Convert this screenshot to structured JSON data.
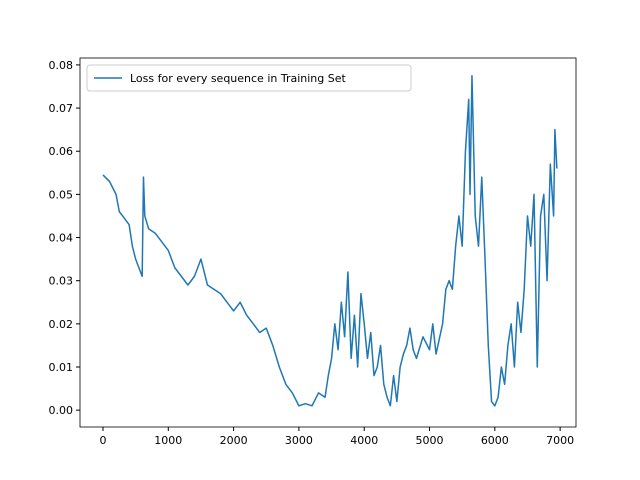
{
  "chart_data": {
    "type": "line",
    "x": [
      0,
      100,
      200,
      250,
      300,
      400,
      450,
      500,
      550,
      600,
      620,
      640,
      700,
      800,
      900,
      1000,
      1100,
      1200,
      1300,
      1400,
      1500,
      1550,
      1600,
      1700,
      1800,
      1900,
      2000,
      2100,
      2200,
      2300,
      2400,
      2500,
      2600,
      2700,
      2800,
      2900,
      3000,
      3100,
      3200,
      3300,
      3400,
      3450,
      3500,
      3550,
      3600,
      3650,
      3700,
      3750,
      3800,
      3850,
      3900,
      3950,
      4000,
      4050,
      4100,
      4150,
      4200,
      4250,
      4300,
      4350,
      4400,
      4450,
      4500,
      4550,
      4600,
      4650,
      4700,
      4750,
      4800,
      4900,
      5000,
      5050,
      5100,
      5200,
      5250,
      5300,
      5350,
      5400,
      5450,
      5500,
      5550,
      5600,
      5620,
      5650,
      5700,
      5750,
      5800,
      5850,
      5900,
      5950,
      6000,
      6050,
      6100,
      6150,
      6200,
      6250,
      6300,
      6350,
      6400,
      6450,
      6500,
      6550,
      6600,
      6650,
      6700,
      6750,
      6800,
      6850,
      6900,
      6920,
      6950
    ],
    "series": [
      {
        "name": "Loss for every sequence in Training Set",
        "color": "#1f77b4",
        "values": [
          0.0545,
          0.053,
          0.05,
          0.046,
          0.045,
          0.043,
          0.038,
          0.035,
          0.033,
          0.031,
          0.054,
          0.045,
          0.042,
          0.041,
          0.039,
          0.037,
          0.033,
          0.031,
          0.029,
          0.031,
          0.035,
          0.032,
          0.029,
          0.028,
          0.027,
          0.025,
          0.023,
          0.025,
          0.022,
          0.02,
          0.018,
          0.019,
          0.015,
          0.01,
          0.006,
          0.004,
          0.001,
          0.0015,
          0.001,
          0.004,
          0.003,
          0.008,
          0.012,
          0.02,
          0.014,
          0.025,
          0.017,
          0.032,
          0.012,
          0.022,
          0.01,
          0.027,
          0.02,
          0.012,
          0.018,
          0.008,
          0.01,
          0.015,
          0.006,
          0.003,
          0.001,
          0.008,
          0.002,
          0.01,
          0.013,
          0.015,
          0.019,
          0.014,
          0.012,
          0.017,
          0.014,
          0.02,
          0.013,
          0.02,
          0.028,
          0.03,
          0.028,
          0.038,
          0.045,
          0.038,
          0.06,
          0.072,
          0.05,
          0.0775,
          0.045,
          0.038,
          0.054,
          0.035,
          0.015,
          0.002,
          0.001,
          0.003,
          0.01,
          0.006,
          0.015,
          0.02,
          0.01,
          0.025,
          0.018,
          0.028,
          0.045,
          0.038,
          0.05,
          0.01,
          0.045,
          0.05,
          0.03,
          0.057,
          0.045,
          0.065,
          0.056
        ]
      }
    ],
    "xlim": [
      -352,
      7243
    ],
    "ylim": [
      -0.0039,
      0.0816
    ],
    "xticks": [
      0,
      1000,
      2000,
      3000,
      4000,
      5000,
      6000,
      7000
    ],
    "yticks": [
      {
        "value": 0,
        "label": "0.00"
      },
      0.01,
      0.02,
      0.03,
      0.04,
      0.05,
      0.06,
      0.07,
      0.08
    ],
    "legend": "upper left"
  }
}
